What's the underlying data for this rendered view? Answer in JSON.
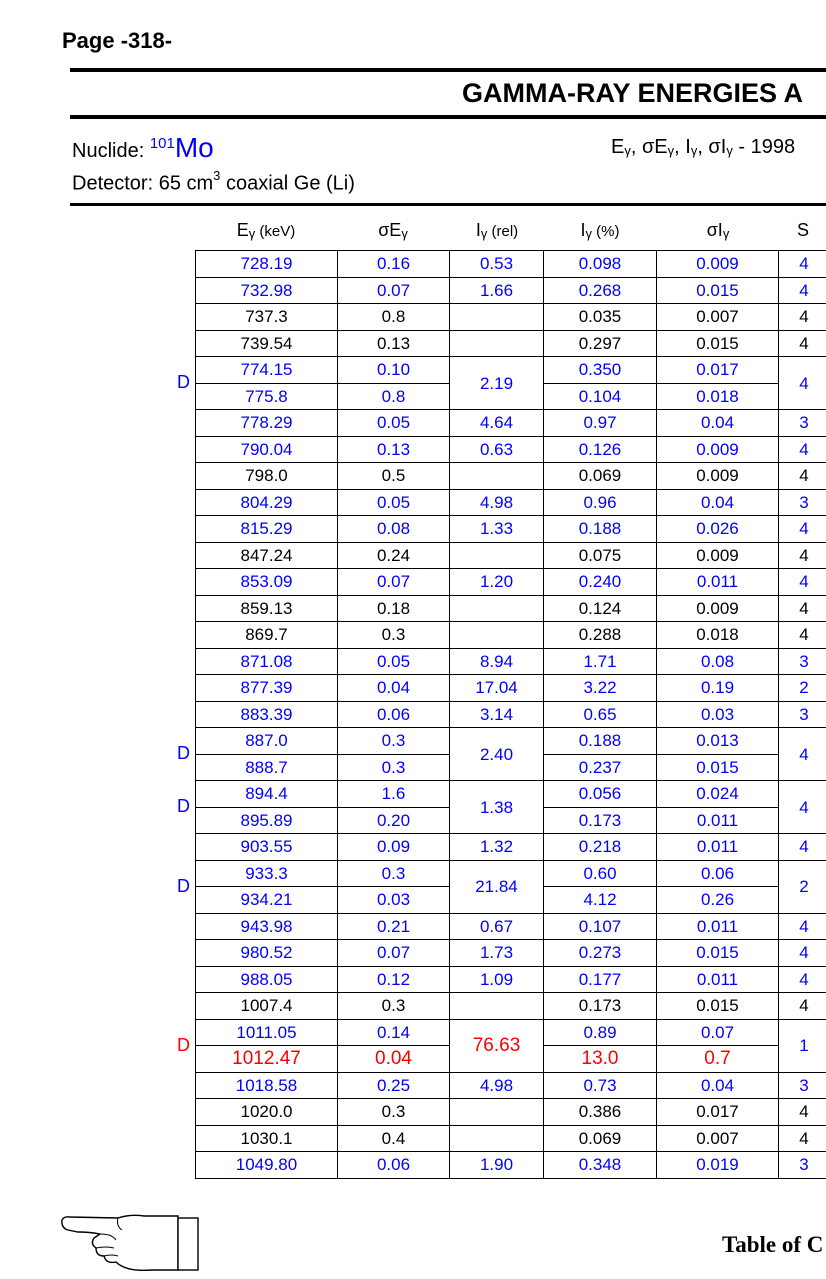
{
  "page_label": "Page -318-",
  "title": "GAMMA-RAY ENERGIES A",
  "nuclide": {
    "label": "Nuclide: ",
    "mass": "101",
    "element": "Mo"
  },
  "detector": {
    "prefix": "Detector: 65 cm",
    "sup": "3",
    "suffix": " coaxial Ge (Li)"
  },
  "energy_line": {
    "tail": " - 1998"
  },
  "headers": {
    "eg": "E",
    "eg_unit": " (keV)",
    "seg": "σE",
    "ig_rel": "I",
    "ig_rel_unit": " (rel)",
    "ig_pct": "I",
    "ig_pct_unit": " (%)",
    "sig": "σI",
    "s": "S"
  },
  "rows": [
    {
      "eg": "728.19",
      "seg": "0.16",
      "irel": "0.53",
      "ipct": "0.098",
      "sig": "0.009",
      "s": "4",
      "color": "blue"
    },
    {
      "eg": "732.98",
      "seg": "0.07",
      "irel": "1.66",
      "ipct": "0.268",
      "sig": "0.015",
      "s": "4",
      "color": "blue"
    },
    {
      "eg": "737.3",
      "seg": "0.8",
      "irel": "",
      "ipct": "0.035",
      "sig": "0.007",
      "s": "4",
      "color": "black"
    },
    {
      "eg": "739.54",
      "seg": "0.13",
      "irel": "",
      "ipct": "0.297",
      "sig": "0.015",
      "s": "4",
      "color": "black"
    },
    {
      "eg": "774.15",
      "seg": "0.10",
      "irel": "2.19",
      "ipct": "0.350",
      "sig": "0.017",
      "s": "4",
      "color": "blue",
      "group": "start",
      "dlabel": "D"
    },
    {
      "eg": "775.8",
      "seg": "0.8",
      "ipct": "0.104",
      "sig": "0.018",
      "color": "blue",
      "group": "end"
    },
    {
      "eg": "778.29",
      "seg": "0.05",
      "irel": "4.64",
      "ipct": "0.97",
      "sig": "0.04",
      "s": "3",
      "color": "blue"
    },
    {
      "eg": "790.04",
      "seg": "0.13",
      "irel": "0.63",
      "ipct": "0.126",
      "sig": "0.009",
      "s": "4",
      "color": "blue"
    },
    {
      "eg": "798.0",
      "seg": "0.5",
      "irel": "",
      "ipct": "0.069",
      "sig": "0.009",
      "s": "4",
      "color": "black"
    },
    {
      "eg": "804.29",
      "seg": "0.05",
      "irel": "4.98",
      "ipct": "0.96",
      "sig": "0.04",
      "s": "3",
      "color": "blue"
    },
    {
      "eg": "815.29",
      "seg": "0.08",
      "irel": "1.33",
      "ipct": "0.188",
      "sig": "0.026",
      "s": "4",
      "color": "blue"
    },
    {
      "eg": "847.24",
      "seg": "0.24",
      "irel": "",
      "ipct": "0.075",
      "sig": "0.009",
      "s": "4",
      "color": "black"
    },
    {
      "eg": "853.09",
      "seg": "0.07",
      "irel": "1.20",
      "ipct": "0.240",
      "sig": "0.011",
      "s": "4",
      "color": "blue"
    },
    {
      "eg": "859.13",
      "seg": "0.18",
      "irel": "",
      "ipct": "0.124",
      "sig": "0.009",
      "s": "4",
      "color": "black"
    },
    {
      "eg": "869.7",
      "seg": "0.3",
      "irel": "",
      "ipct": "0.288",
      "sig": "0.018",
      "s": "4",
      "color": "black"
    },
    {
      "eg": "871.08",
      "seg": "0.05",
      "irel": "8.94",
      "ipct": "1.71",
      "sig": "0.08",
      "s": "3",
      "color": "blue"
    },
    {
      "eg": "877.39",
      "seg": "0.04",
      "irel": "17.04",
      "ipct": "3.22",
      "sig": "0.19",
      "s": "2",
      "color": "blue"
    },
    {
      "eg": "883.39",
      "seg": "0.06",
      "irel": "3.14",
      "ipct": "0.65",
      "sig": "0.03",
      "s": "3",
      "color": "blue"
    },
    {
      "eg": "887.0",
      "seg": "0.3",
      "irel": "2.40",
      "ipct": "0.188",
      "sig": "0.013",
      "s": "4",
      "color": "blue",
      "group": "start",
      "dlabel": "D"
    },
    {
      "eg": "888.7",
      "seg": "0.3",
      "ipct": "0.237",
      "sig": "0.015",
      "color": "blue",
      "group": "end"
    },
    {
      "eg": "894.4",
      "seg": "1.6",
      "irel": "1.38",
      "ipct": "0.056",
      "sig": "0.024",
      "s": "4",
      "color": "blue",
      "group": "start",
      "dlabel": "D"
    },
    {
      "eg": "895.89",
      "seg": "0.20",
      "ipct": "0.173",
      "sig": "0.011",
      "color": "blue",
      "group": "end"
    },
    {
      "eg": "903.55",
      "seg": "0.09",
      "irel": "1.32",
      "ipct": "0.218",
      "sig": "0.011",
      "s": "4",
      "color": "blue"
    },
    {
      "eg": "933.3",
      "seg": "0.3",
      "irel": "21.84",
      "ipct": "0.60",
      "sig": "0.06",
      "s": "2",
      "color": "blue",
      "group": "start",
      "dlabel": "D"
    },
    {
      "eg": "934.21",
      "seg": "0.03",
      "ipct": "4.12",
      "sig": "0.26",
      "color": "blue",
      "group": "end"
    },
    {
      "eg": "943.98",
      "seg": "0.21",
      "irel": "0.67",
      "ipct": "0.107",
      "sig": "0.011",
      "s": "4",
      "color": "blue"
    },
    {
      "eg": "980.52",
      "seg": "0.07",
      "irel": "1.73",
      "ipct": "0.273",
      "sig": "0.015",
      "s": "4",
      "color": "blue"
    },
    {
      "eg": "988.05",
      "seg": "0.12",
      "irel": "1.09",
      "ipct": "0.177",
      "sig": "0.011",
      "s": "4",
      "color": "blue"
    },
    {
      "eg": "1007.4",
      "seg": "0.3",
      "irel": "",
      "ipct": "0.173",
      "sig": "0.015",
      "s": "4",
      "color": "black"
    },
    {
      "eg": "1011.05",
      "seg": "0.14",
      "irel": "76.63",
      "ipct": "0.89",
      "sig": "0.07",
      "s": "1",
      "color": "blue",
      "group": "start",
      "dlabel": "D",
      "dcolor": "red",
      "irelcolor": "red",
      "scolor": "blue"
    },
    {
      "eg": "1012.47",
      "seg": "0.04",
      "ipct": "13.0",
      "sig": "0.7",
      "color": "red",
      "group": "end"
    },
    {
      "eg": "1018.58",
      "seg": "0.25",
      "irel": "4.98",
      "ipct": "0.73",
      "sig": "0.04",
      "s": "3",
      "color": "blue"
    },
    {
      "eg": "1020.0",
      "seg": "0.3",
      "irel": "",
      "ipct": "0.386",
      "sig": "0.017",
      "s": "4",
      "color": "black"
    },
    {
      "eg": "1030.1",
      "seg": "0.4",
      "irel": "",
      "ipct": "0.069",
      "sig": "0.007",
      "s": "4",
      "color": "black"
    },
    {
      "eg": "1049.80",
      "seg": "0.06",
      "irel": "1.90",
      "ipct": "0.348",
      "sig": "0.019",
      "s": "3",
      "color": "blue"
    }
  ],
  "footer": {
    "text": "Table of C",
    "icon": "pointing-hand-icon"
  },
  "colors": {
    "blue": "#0000ff",
    "red": "#ff0000"
  }
}
